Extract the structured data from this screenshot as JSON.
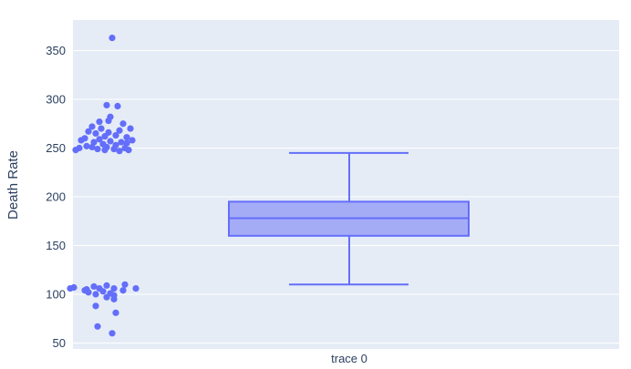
{
  "chart_data": {
    "type": "box",
    "title": "",
    "xlabel": "",
    "ylabel": "Death Rate",
    "ylim": [
      45,
      378
    ],
    "yticks": [
      50,
      100,
      150,
      200,
      250,
      300,
      350
    ],
    "grid": true,
    "legend": "none",
    "colors": {
      "plot_bg": "#e5ecf6",
      "grid": "#ffffff",
      "trace": "#636efa",
      "box_fill": "#a5acf6",
      "text": "#2a3f5f"
    },
    "series": [
      {
        "category": "trace 0",
        "box": {
          "lower_whisker": 110,
          "q1": 160,
          "median": 178,
          "q3": 195,
          "upper_whisker": 245
        },
        "points": [
          {
            "x": -1.3,
            "y": 363
          },
          {
            "x": -1.33,
            "y": 294
          },
          {
            "x": -1.27,
            "y": 293
          },
          {
            "x": -1.31,
            "y": 282
          },
          {
            "x": -1.32,
            "y": 278
          },
          {
            "x": -1.24,
            "y": 275
          },
          {
            "x": -1.37,
            "y": 277
          },
          {
            "x": -1.41,
            "y": 272
          },
          {
            "x": -1.36,
            "y": 270
          },
          {
            "x": -1.2,
            "y": 270
          },
          {
            "x": -1.26,
            "y": 268
          },
          {
            "x": -1.43,
            "y": 267
          },
          {
            "x": -1.32,
            "y": 266
          },
          {
            "x": -1.39,
            "y": 265
          },
          {
            "x": -1.28,
            "y": 263
          },
          {
            "x": -1.34,
            "y": 262
          },
          {
            "x": -1.45,
            "y": 260
          },
          {
            "x": -1.22,
            "y": 261
          },
          {
            "x": -1.37,
            "y": 259
          },
          {
            "x": -1.19,
            "y": 258
          },
          {
            "x": -1.47,
            "y": 258
          },
          {
            "x": -1.31,
            "y": 257
          },
          {
            "x": -1.25,
            "y": 256
          },
          {
            "x": -1.4,
            "y": 256
          },
          {
            "x": -1.22,
            "y": 255
          },
          {
            "x": -1.35,
            "y": 254
          },
          {
            "x": -1.28,
            "y": 253
          },
          {
            "x": -1.44,
            "y": 252
          },
          {
            "x": -1.33,
            "y": 251
          },
          {
            "x": -1.41,
            "y": 251
          },
          {
            "x": -1.23,
            "y": 250
          },
          {
            "x": -1.48,
            "y": 250
          },
          {
            "x": -1.38,
            "y": 249
          },
          {
            "x": -1.29,
            "y": 249
          },
          {
            "x": -1.21,
            "y": 248
          },
          {
            "x": -1.5,
            "y": 248
          },
          {
            "x": -1.34,
            "y": 248
          },
          {
            "x": -1.26,
            "y": 247
          },
          {
            "x": -1.23,
            "y": 110
          },
          {
            "x": -1.33,
            "y": 109
          },
          {
            "x": -1.4,
            "y": 108
          },
          {
            "x": -1.51,
            "y": 107
          },
          {
            "x": -1.17,
            "y": 106
          },
          {
            "x": -1.53,
            "y": 106
          },
          {
            "x": -1.29,
            "y": 106
          },
          {
            "x": -1.37,
            "y": 106
          },
          {
            "x": -1.44,
            "y": 105
          },
          {
            "x": -1.45,
            "y": 104
          },
          {
            "x": -1.24,
            "y": 104
          },
          {
            "x": -1.35,
            "y": 103
          },
          {
            "x": -1.43,
            "y": 102
          },
          {
            "x": -1.31,
            "y": 101
          },
          {
            "x": -1.39,
            "y": 100
          },
          {
            "x": -1.29,
            "y": 99
          },
          {
            "x": -1.33,
            "y": 97
          },
          {
            "x": -1.29,
            "y": 95
          },
          {
            "x": -1.39,
            "y": 88
          },
          {
            "x": -1.28,
            "y": 81
          },
          {
            "x": -1.38,
            "y": 67
          },
          {
            "x": -1.3,
            "y": 60
          }
        ]
      }
    ]
  }
}
